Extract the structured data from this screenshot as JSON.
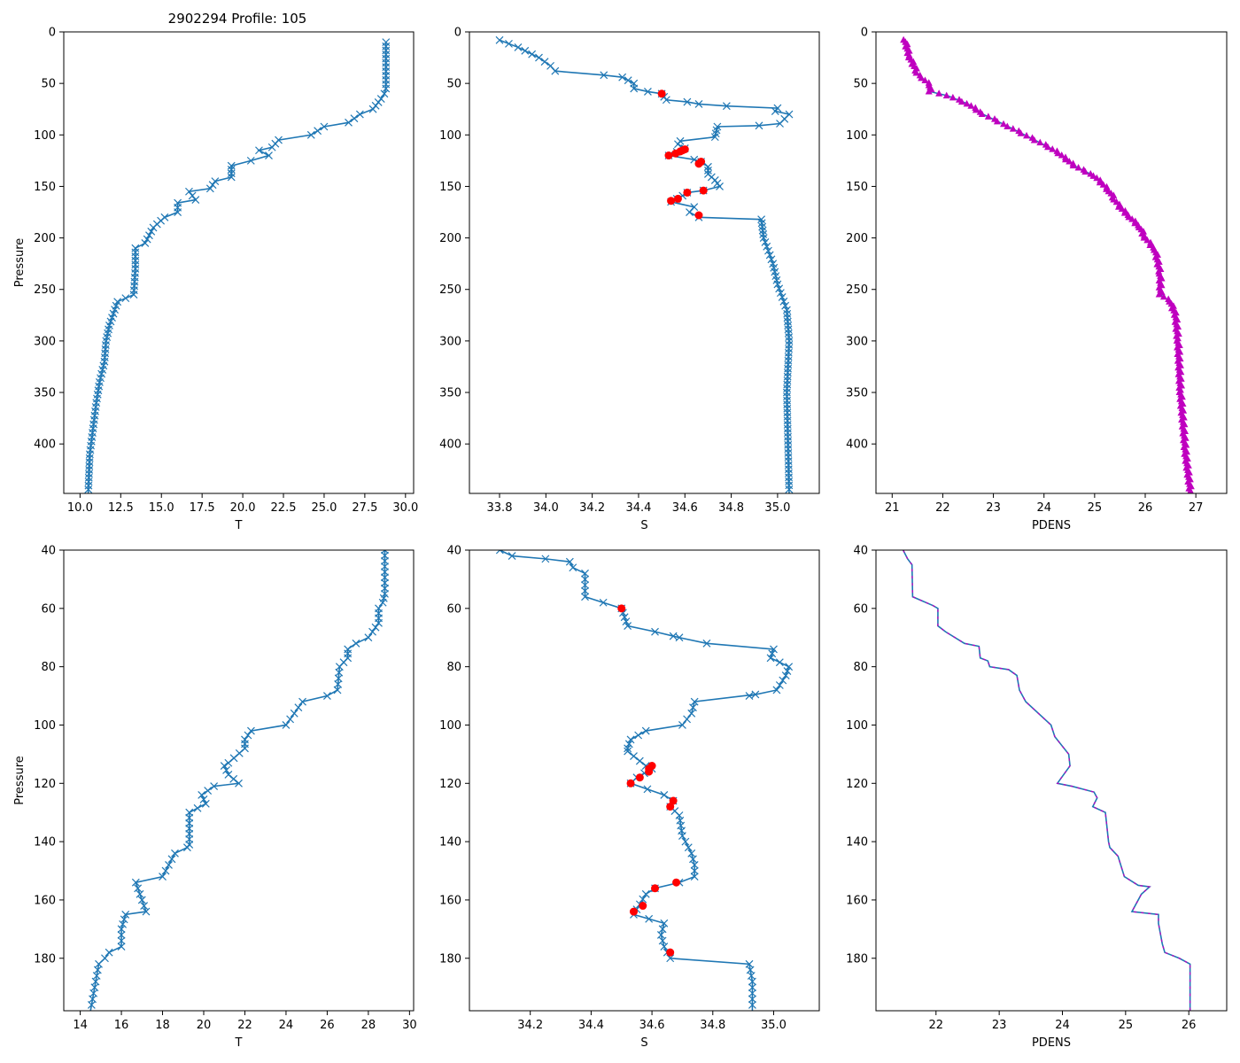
{
  "figure": {
    "title": "2902294 Profile: 105",
    "background": "#ffffff",
    "colors": {
      "line": "#1f77b4",
      "flag": "#ff0000",
      "pdens": "#bf00bf",
      "axis": "#000000"
    }
  },
  "chart_data": [
    {
      "type": "line",
      "title": "2902294 Profile: 105",
      "xlabel": "T",
      "ylabel": "Pressure",
      "xlim": [
        9,
        30.5
      ],
      "ylim": [
        448,
        0
      ],
      "xticks": [
        10.0,
        12.5,
        15.0,
        17.5,
        20.0,
        22.5,
        25.0,
        27.5,
        30.0
      ],
      "xtick_labels": [
        "10.0",
        "12.5",
        "15.0",
        "17.5",
        "20.0",
        "22.5",
        "25.0",
        "27.5",
        "30.0"
      ],
      "yticks": [
        0,
        50,
        100,
        150,
        200,
        250,
        300,
        350,
        400
      ],
      "ytick_labels": [
        "0",
        "50",
        "100",
        "150",
        "200",
        "250",
        "300",
        "350",
        "400"
      ],
      "marker": "x",
      "series": [
        {
          "name": "T",
          "x": [
            28.8,
            28.8,
            28.8,
            28.7,
            28.5,
            28.0,
            27.2,
            26.5,
            25.0,
            24.2,
            22.2,
            21.8,
            21.0,
            21.6,
            20.5,
            19.3,
            19.3,
            18.3,
            18.0,
            16.7,
            17.1,
            16.0,
            16.0,
            15.2,
            14.5,
            14.0,
            13.4,
            13.4,
            13.3,
            12.3,
            11.8,
            11.6,
            11.5,
            11.2,
            11.0,
            10.8,
            10.6,
            10.5
          ],
          "y": [
            10,
            30,
            55,
            60,
            65,
            75,
            80,
            88,
            92,
            100,
            105,
            112,
            115,
            120,
            125,
            130,
            141,
            145,
            152,
            155,
            163,
            166,
            175,
            180,
            190,
            205,
            210,
            230,
            255,
            262,
            285,
            300,
            320,
            340,
            360,
            385,
            410,
            448
          ]
        }
      ]
    },
    {
      "type": "line",
      "title": "",
      "xlabel": "S",
      "ylabel": "",
      "xlim": [
        33.67,
        35.18
      ],
      "ylim": [
        448,
        0
      ],
      "xticks": [
        33.8,
        34.0,
        34.2,
        34.4,
        34.6,
        34.8,
        35.0
      ],
      "xtick_labels": [
        "33.8",
        "34.0",
        "34.2",
        "34.4",
        "34.6",
        "34.8",
        "35.0"
      ],
      "yticks": [
        0,
        50,
        100,
        150,
        200,
        250,
        300,
        350,
        400
      ],
      "ytick_labels": [
        "0",
        "50",
        "100",
        "150",
        "200",
        "250",
        "300",
        "350",
        "400"
      ],
      "marker": "x",
      "series": [
        {
          "name": "S",
          "x": [
            33.8,
            33.88,
            33.97,
            34.02,
            34.04,
            34.25,
            34.33,
            34.38,
            34.38,
            34.44,
            34.5,
            34.52,
            34.61,
            34.66,
            34.78,
            35.0,
            34.99,
            35.05,
            35.01,
            34.92,
            34.74,
            34.73,
            34.58,
            34.57,
            34.6,
            34.53,
            34.64,
            34.67,
            34.7,
            34.7,
            34.73,
            34.75,
            34.68,
            34.61,
            34.59,
            34.54,
            34.64,
            34.62,
            34.66,
            34.93,
            34.94,
            34.98,
            35.0,
            35.04,
            35.05,
            35.04,
            35.05
          ],
          "y": [
            8,
            15,
            25,
            33,
            38,
            42,
            44,
            50,
            55,
            58,
            60,
            66,
            68,
            70,
            72,
            74,
            77,
            80,
            89,
            91,
            92,
            102,
            106,
            109,
            113,
            120,
            124,
            126,
            131,
            138,
            144,
            150,
            154,
            156,
            159,
            165,
            170,
            175,
            180,
            182,
            200,
            225,
            245,
            270,
            300,
            350,
            448
          ]
        },
        {
          "name": "flagged",
          "x": [
            34.5,
            34.6,
            34.59,
            34.58,
            34.56,
            34.53,
            34.67,
            34.66,
            34.68,
            34.61,
            34.57,
            34.54,
            34.66
          ],
          "y": [
            60,
            114,
            115,
            116,
            118,
            120,
            126,
            128,
            154,
            156,
            162,
            164,
            178
          ]
        }
      ]
    },
    {
      "type": "scatter",
      "title": "",
      "xlabel": "PDENS",
      "ylabel": "",
      "xlim": [
        20.68,
        27.61
      ],
      "ylim": [
        448,
        0
      ],
      "xticks": [
        21,
        22,
        23,
        24,
        25,
        26,
        27
      ],
      "xtick_labels": [
        "21",
        "22",
        "23",
        "24",
        "25",
        "26",
        "27"
      ],
      "yticks": [
        0,
        50,
        100,
        150,
        200,
        250,
        300,
        350,
        400
      ],
      "ytick_labels": [
        "0",
        "50",
        "100",
        "150",
        "200",
        "250",
        "300",
        "350",
        "400"
      ],
      "marker": "^",
      "series": [
        {
          "name": "PDENS",
          "x": [
            21.25,
            21.35,
            21.5,
            21.6,
            21.75,
            21.75,
            22.1,
            22.5,
            22.8,
            23.3,
            24.1,
            24.3,
            24.45,
            24.6,
            25.0,
            25.3,
            25.4,
            25.5,
            25.7,
            25.9,
            26.0,
            26.2,
            26.3,
            26.3,
            26.5,
            26.6,
            26.65,
            26.7,
            26.8,
            26.9
          ],
          "y": [
            8,
            25,
            40,
            45,
            52,
            58,
            62,
            70,
            80,
            92,
            112,
            118,
            124,
            130,
            140,
            155,
            163,
            170,
            180,
            190,
            200,
            212,
            235,
            255,
            262,
            275,
            300,
            350,
            410,
            448
          ]
        }
      ]
    },
    {
      "type": "line",
      "title": "",
      "xlabel": "T",
      "ylabel": "Pressure",
      "xlim": [
        13.2,
        30.2
      ],
      "ylim": [
        198,
        40
      ],
      "xticks": [
        14,
        16,
        18,
        20,
        22,
        24,
        26,
        28,
        30
      ],
      "xtick_labels": [
        "14",
        "16",
        "18",
        "20",
        "22",
        "24",
        "26",
        "28",
        "30"
      ],
      "yticks": [
        40,
        60,
        80,
        100,
        120,
        140,
        160,
        180
      ],
      "ytick_labels": [
        "40",
        "60",
        "80",
        "100",
        "120",
        "140",
        "160",
        "180"
      ],
      "marker": "x",
      "series": [
        {
          "name": "T",
          "x": [
            28.8,
            28.8,
            28.7,
            28.5,
            28.5,
            28.2,
            28.0,
            27.4,
            27.0,
            27.0,
            26.6,
            26.5,
            26.0,
            24.8,
            24.6,
            24.4,
            24.0,
            22.3,
            22.0,
            22.0,
            21.2,
            21.0,
            21.2,
            21.7,
            20.5,
            19.9,
            20.1,
            19.3,
            19.3,
            19.2,
            18.6,
            18.0,
            16.7,
            16.9,
            17.2,
            16.2,
            16.0,
            16.0,
            15.4,
            15.2,
            14.9,
            14.5
          ],
          "y": [
            40,
            55,
            58,
            60,
            65,
            68,
            70,
            72,
            74,
            77,
            80,
            88,
            90,
            92,
            94,
            96,
            100,
            102,
            105,
            108,
            113,
            114,
            117,
            120,
            121,
            124,
            127,
            130,
            141,
            142,
            144,
            152,
            154,
            158,
            164,
            165,
            170,
            176,
            178,
            180,
            182,
            198
          ]
        }
      ]
    },
    {
      "type": "line",
      "title": "",
      "xlabel": "S",
      "ylabel": "",
      "xlim": [
        34.0,
        35.15
      ],
      "ylim": [
        198,
        40
      ],
      "xticks": [
        34.2,
        34.4,
        34.6,
        34.8,
        35.0
      ],
      "xtick_labels": [
        "34.2",
        "34.4",
        "34.6",
        "34.8",
        "35.0"
      ],
      "yticks": [
        40,
        60,
        80,
        100,
        120,
        140,
        160,
        180
      ],
      "ytick_labels": [
        "40",
        "60",
        "80",
        "100",
        "120",
        "140",
        "160",
        "180"
      ],
      "marker": "x",
      "series": [
        {
          "name": "S",
          "x": [
            34.1,
            34.14,
            34.25,
            34.33,
            34.34,
            34.38,
            34.38,
            34.38,
            34.44,
            34.5,
            34.51,
            34.52,
            34.61,
            34.67,
            34.69,
            34.78,
            35.0,
            34.99,
            35.05,
            35.04,
            35.01,
            34.92,
            34.94,
            34.74,
            34.73,
            34.7,
            34.58,
            34.53,
            34.52,
            34.52,
            34.58,
            34.6,
            34.55,
            34.53,
            34.64,
            34.67,
            34.66,
            34.69,
            34.7,
            34.73,
            34.74,
            34.74,
            34.69,
            34.61,
            34.58,
            34.54,
            34.64,
            34.63,
            34.64,
            34.66,
            34.92,
            34.93,
            34.93
          ],
          "y": [
            40,
            42,
            43,
            44,
            46,
            48,
            52,
            56,
            58,
            60,
            63,
            66,
            68,
            69.5,
            70,
            72,
            74,
            77,
            80,
            83,
            88,
            90,
            89.5,
            92,
            96,
            100,
            102,
            105,
            108,
            109,
            114,
            115,
            118,
            120,
            124,
            126,
            128,
            131,
            138,
            144,
            148,
            152,
            154,
            156,
            158,
            165,
            168,
            172,
            176,
            180,
            182,
            188,
            198
          ]
        },
        {
          "name": "flagged",
          "x": [
            34.5,
            34.6,
            34.59,
            34.59,
            34.56,
            34.53,
            34.67,
            34.66,
            34.68,
            34.61,
            34.57,
            34.54,
            34.66
          ],
          "y": [
            60,
            114,
            115,
            116,
            118,
            120,
            126,
            128,
            154,
            156,
            162,
            164,
            178
          ]
        }
      ]
    },
    {
      "type": "line",
      "title": "",
      "xlabel": "PDENS",
      "ylabel": "",
      "xlim": [
        21.05,
        26.6
      ],
      "ylim": [
        198,
        40
      ],
      "xticks": [
        22,
        23,
        24,
        25,
        26
      ],
      "xtick_labels": [
        "22",
        "23",
        "24",
        "25",
        "26"
      ],
      "yticks": [
        40,
        60,
        80,
        100,
        120,
        140,
        160,
        180
      ],
      "ytick_labels": [
        "40",
        "60",
        "80",
        "100",
        "120",
        "140",
        "160",
        "180"
      ],
      "marker": "none",
      "series": [
        {
          "name": "PDENS",
          "x": [
            21.48,
            21.55,
            21.62,
            21.63,
            21.95,
            22.03,
            22.03,
            22.15,
            22.45,
            22.68,
            22.7,
            22.82,
            22.85,
            23.15,
            23.28,
            23.32,
            23.42,
            23.82,
            23.88,
            24.1,
            24.12,
            23.92,
            24.15,
            24.5,
            24.55,
            24.48,
            24.68,
            24.73,
            24.75,
            24.88,
            24.98,
            25.2,
            25.38,
            25.25,
            25.2,
            25.1,
            25.52,
            25.52,
            25.58,
            25.62,
            25.85,
            26.02,
            26.02
          ],
          "y": [
            40,
            43,
            45,
            56,
            59,
            60,
            66,
            68,
            72,
            73,
            77,
            78,
            80,
            81,
            83,
            88,
            92,
            100,
            104,
            110,
            114,
            120,
            121,
            123,
            125,
            128,
            130,
            140,
            142,
            145,
            152,
            155,
            155.5,
            158,
            160,
            164,
            165,
            168,
            175,
            178,
            180,
            182,
            198
          ]
        }
      ]
    }
  ]
}
